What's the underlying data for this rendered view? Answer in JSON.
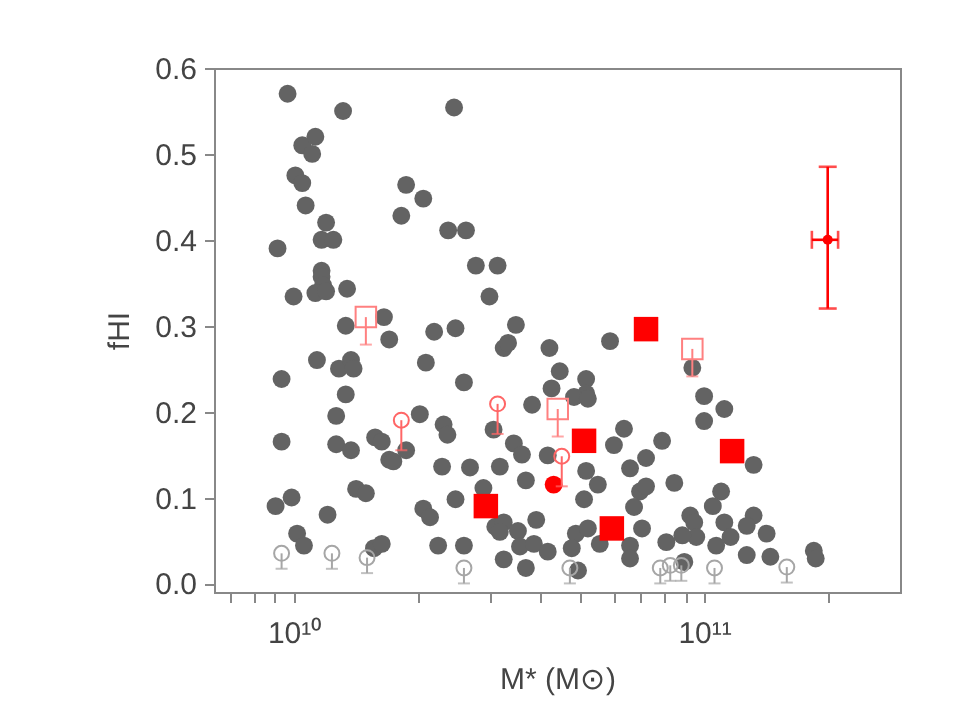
{
  "chart_data": {
    "type": "scatter",
    "xlabel": "M* (M⊙)",
    "ylabel": "fHI",
    "log": "x",
    "grid": false,
    "xlim": [
      6400000000.0,
      300000000000.0
    ],
    "xticks": [
      {
        "value": 7000000000.0,
        "label": null
      },
      {
        "value": 8000000000.0,
        "label": null
      },
      {
        "value": 9000000000.0,
        "label": null
      },
      {
        "value": 10000000000.0,
        "label": "10¹⁰"
      },
      {
        "value": 20000000000.0,
        "label": null
      },
      {
        "value": 30000000000.0,
        "label": null
      },
      {
        "value": 40000000000.0,
        "label": null
      },
      {
        "value": 50000000000.0,
        "label": null
      },
      {
        "value": 60000000000.0,
        "label": null
      },
      {
        "value": 70000000000.0,
        "label": null
      },
      {
        "value": 80000000000.0,
        "label": null
      },
      {
        "value": 90000000000.0,
        "label": null
      },
      {
        "value": 100000000000.0,
        "label": "10¹¹"
      },
      {
        "value": 200000000000.0,
        "label": null
      }
    ],
    "ylim": [
      -0.01,
      0.6
    ],
    "yticks": [
      {
        "value": 0,
        "label": "0.0"
      },
      {
        "value": 0.1,
        "label": "0.1"
      },
      {
        "value": 0.2,
        "label": "0.2"
      },
      {
        "value": 0.3,
        "label": "0.3"
      },
      {
        "value": 0.4,
        "label": "0.4"
      },
      {
        "value": 0.5,
        "label": "0.5"
      },
      {
        "value": 0.6,
        "label": "0.6"
      }
    ],
    "series": [
      {
        "marker": "circle",
        "color": "#636363",
        "x": [
          9670000000.0,
          13200000000.0,
          10500000000.0,
          11300000000.0,
          11100000000.0,
          10100000000.0,
          10500000000.0,
          10700000000.0,
          12000000000.0,
          11700000000.0,
          12500000000.0,
          9140000000.0,
          11700000000.0,
          11700000000.0,
          11800000000.0,
          11300000000.0,
          12000000000.0,
          13500000000.0,
          10000000000.0,
          13400000000.0,
          16600000000.0,
          17100000000.0,
          11400000000.0,
          9350000000.0,
          12900000000.0,
          13800000000.0,
          14000000000.0,
          13400000000.0,
          12700000000.0,
          9350000000.0,
          12700000000.0,
          13800000000.0,
          15800000000.0,
          16400000000.0,
          17100000000.0,
          17500000000.0,
          20300000000.0,
          18800000000.0,
          14200000000.0,
          15000000000.0,
          9890000000.0,
          9040000000.0,
          12100000000.0,
          10200000000.0,
          10600000000.0,
          15700000000.0,
          16400000000.0,
          20700000000.0,
          21500000000.0,
          22500000000.0,
          18800000000.0,
          20700000000.0,
          18300000000.0,
          22000000000.0,
          21000000000.0,
          24600000000.0,
          23800000000.0,
          26300000000.0,
          27800000000.0,
          31400000000.0,
          30000000000.0,
          24800000000.0,
          34800000000.0,
          32500000000.0,
          33300000000.0,
          26000000000.0,
          42000000000.0,
          59000000000.0,
          44500000000.0,
          51600000000.0,
          51600000000.0,
          42500000000.0,
          48200000000.0,
          52100000000.0,
          38100000000.0,
          23200000000.0,
          23700000000.0,
          30700000000.0,
          34400000000.0,
          36000000000.0,
          41600000000.0,
          23000000000.0,
          26900000000.0,
          31800000000.0,
          51600000000.0,
          60300000000.0,
          63800000000.0,
          79000000000.0,
          72200000000.0,
          66000000000.0,
          36800000000.0,
          55100000000.0,
          29000000000.0,
          24800000000.0,
          51000000000.0,
          69800000000.0,
          72200000000.0,
          67500000000.0,
          84600000000.0,
          39000000000.0,
          31000000000.0,
          32500000000.0,
          31800000000.0,
          35200000000.0,
          26000000000.0,
          35600000000.0,
          38500000000.0,
          41600000000.0,
          48700000000.0,
          52100000000.0,
          55700000000.0,
          47600000000.0,
          66000000000.0,
          70600000000.0,
          80900000000.0,
          36800000000.0,
          32500000000.0,
          49300000000.0,
          66000000000.0,
          93600000000.0,
          100000000000.0,
          100000000000.0,
          112000000000.0,
          132000000000.0,
          110000000000.0,
          105000000000.0,
          132000000000.0,
          127000000000.0,
          112000000000.0,
          142000000000.0,
          116000000000.0,
          92500000000.0,
          94600000000.0,
          95700000000.0,
          88500000000.0,
          107000000000.0,
          127000000000.0,
          145000000000.0,
          185000000000.0,
          187000000000.0,
          89500000000.0
        ],
        "values": [
          0.57,
          0.55,
          0.51,
          0.52,
          0.5,
          0.475,
          0.466,
          0.44,
          0.42,
          0.4,
          0.4,
          0.39,
          0.364,
          0.357,
          0.347,
          0.338,
          0.34,
          0.343,
          0.334,
          0.3,
          0.31,
          0.284,
          0.26,
          0.238,
          0.25,
          0.26,
          0.25,
          0.22,
          0.195,
          0.165,
          0.162,
          0.155,
          0.17,
          0.165,
          0.144,
          0.142,
          0.197,
          0.155,
          0.11,
          0.105,
          0.1,
          0.09,
          0.08,
          0.058,
          0.044,
          0.041,
          0.046,
          0.087,
          0.077,
          0.044,
          0.464,
          0.448,
          0.428,
          0.293,
          0.257,
          0.554,
          0.411,
          0.411,
          0.37,
          0.37,
          0.334,
          0.297,
          0.301,
          0.274,
          0.28,
          0.234,
          0.274,
          0.282,
          0.247,
          0.238,
          0.221,
          0.227,
          0.217,
          0.215,
          0.208,
          0.185,
          0.173,
          0.179,
          0.163,
          0.15,
          0.149,
          0.136,
          0.135,
          0.136,
          0.131,
          0.161,
          0.18,
          0.166,
          0.146,
          0.134,
          0.12,
          0.115,
          0.111,
          0.098,
          0.098,
          0.107,
          0.113,
          0.089,
          0.117,
          0.074,
          0.066,
          0.071,
          0.06,
          0.061,
          0.044,
          0.043,
          0.046,
          0.037,
          0.058,
          0.064,
          0.046,
          0.041,
          0.044,
          0.064,
          0.048,
          0.018,
          0.028,
          0.015,
          0.029,
          0.251,
          0.218,
          0.189,
          0.203,
          0.138,
          0.107,
          0.09,
          0.079,
          0.067,
          0.071,
          0.058,
          0.054,
          0.079,
          0.071,
          0.054,
          0.056,
          0.044,
          0.033,
          0.031,
          0.038,
          0.029,
          0.025
        ]
      },
      {
        "marker": "circle",
        "color": "#a6a6a6",
        "x": [
          9350000000.0,
          12400000000.0,
          15100000000.0,
          26000000000.0,
          47100000000.0,
          78200000000.0,
          82700000000.0,
          88000000000.0,
          106000000000.0,
          159000000000.0
        ],
        "values": [
          0.035,
          0.035,
          0.03,
          0.018,
          0.018,
          0.018,
          0.021,
          0.021,
          0.018,
          0.019
        ],
        "errors": [
          [
            0.017,
            0.035
          ],
          [
            0.017,
            0.035
          ],
          [
            0.012,
            0.03
          ],
          [
            0,
            0.018
          ],
          [
            0,
            0.018
          ],
          [
            0,
            0.018
          ],
          [
            0.003,
            0.021
          ],
          [
            0.003,
            0.021
          ],
          [
            0,
            0.018
          ],
          [
            0.001,
            0.019
          ]
        ]
      },
      {
        "marker": "square",
        "color": "#ff0000",
        "x": [
          72200000000.0,
          51000000000.0,
          29400000000.0,
          59600000000.0,
          117000000000.0
        ],
        "values": [
          0.296,
          0.166,
          0.09,
          0.064,
          0.154
        ]
      },
      {
        "marker": "circle",
        "color": "#ff0000",
        "x": [
          43000000000.0
        ],
        "values": [
          0.115
        ]
      },
      {
        "marker": "square",
        "color": "#ff8080",
        "x": [
          15000000000.0,
          44000000000.0,
          93600000000.0
        ],
        "values": [
          0.31,
          0.203,
          0.273
        ],
        "errors": [
          [
            0.278,
            0.31
          ],
          [
            0.171,
            0.203
          ],
          [
            0.241,
            0.273
          ]
        ]
      },
      {
        "marker": "circle",
        "color": "#ff6666",
        "x": [
          18300000000.0,
          45000000000.0,
          31400000000.0
        ],
        "values": [
          0.19,
          0.148,
          0.209
        ],
        "errors": [
          [
            0.155,
            0.19
          ],
          [
            0.113,
            0.148
          ],
          [
            0.174,
            0.209
          ]
        ]
      },
      {
        "color": "#ff0000",
        "x": [
          200000000000.0
        ],
        "values": [
          0.4
        ],
        "errors": [
          [
            0.32,
            0.485
          ]
        ],
        "xerrors": [
          [
            183000000000.0,
            212000000000.0
          ]
        ]
      }
    ]
  }
}
